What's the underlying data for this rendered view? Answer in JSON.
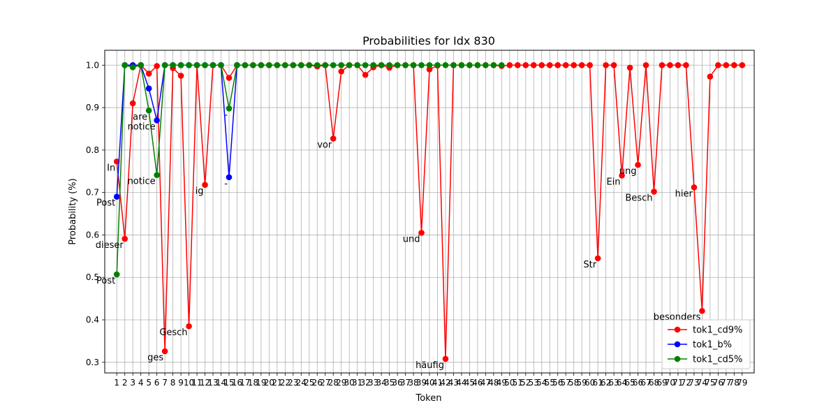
{
  "chart_data": {
    "type": "line",
    "title": "Probabilities for Idx 830",
    "xlabel": "Token",
    "ylabel": "Probability (%)",
    "xlim": [
      -0.5,
      80.5
    ],
    "ylim": [
      0.275,
      1.035
    ],
    "yticks": [
      0.3,
      0.4,
      0.5,
      0.6,
      0.7,
      0.8,
      0.9,
      1.0
    ],
    "xticks": [
      1,
      2,
      3,
      4,
      5,
      6,
      7,
      8,
      9,
      10,
      11,
      12,
      13,
      14,
      15,
      16,
      17,
      18,
      19,
      20,
      21,
      22,
      23,
      24,
      25,
      26,
      27,
      28,
      29,
      30,
      31,
      32,
      33,
      34,
      35,
      36,
      37,
      38,
      39,
      40,
      41,
      42,
      43,
      44,
      45,
      46,
      47,
      48,
      49,
      50,
      51,
      52,
      53,
      54,
      55,
      56,
      57,
      58,
      59,
      60,
      61,
      62,
      63,
      64,
      65,
      66,
      67,
      68,
      69,
      70,
      71,
      72,
      73,
      74,
      75,
      76,
      77,
      78,
      79
    ],
    "grid": true,
    "legend_position": "lower right",
    "series": [
      {
        "name": "tok1_cd9%",
        "color": "#ff0000",
        "x": [
          1,
          2,
          3,
          4,
          5,
          6,
          7,
          8,
          9,
          10,
          11,
          12,
          13,
          14,
          15,
          16,
          17,
          18,
          19,
          20,
          21,
          22,
          23,
          24,
          25,
          26,
          27,
          28,
          29,
          30,
          31,
          32,
          33,
          34,
          35,
          36,
          37,
          38,
          39,
          40,
          41,
          42,
          43,
          44,
          45,
          46,
          47,
          48,
          49,
          50,
          51,
          52,
          53,
          54,
          55,
          56,
          57,
          58,
          59,
          60,
          61,
          62,
          63,
          64,
          65,
          66,
          67,
          68,
          69,
          70,
          71,
          72,
          73,
          74,
          75,
          76,
          77,
          78,
          79
        ],
        "y": [
          0.773,
          0.591,
          0.91,
          1.0,
          0.98,
          0.998,
          0.326,
          0.993,
          0.975,
          0.385,
          1.0,
          0.718,
          1.0,
          1.0,
          0.97,
          1.0,
          1.0,
          1.0,
          1.0,
          1.0,
          1.0,
          1.0,
          1.0,
          1.0,
          1.0,
          0.997,
          1.0,
          0.827,
          0.985,
          1.0,
          1.0,
          0.977,
          0.995,
          1.0,
          0.994,
          1.0,
          1.0,
          1.0,
          0.605,
          0.99,
          0.999,
          0.308,
          1.0,
          1.0,
          1.0,
          1.0,
          1.0,
          1.0,
          0.998,
          1.0,
          1.0,
          1.0,
          1.0,
          1.0,
          1.0,
          1.0,
          1.0,
          1.0,
          1.0,
          1.0,
          0.545,
          1.0,
          1.0,
          0.74,
          0.994,
          0.765,
          1.0,
          0.702,
          1.0,
          1.0,
          1.0,
          1.0,
          0.712,
          0.421,
          0.973,
          1.0,
          1.0,
          1.0,
          1.0
        ]
      },
      {
        "name": "tok1_b%",
        "color": "#0000ff",
        "x": [
          1,
          2,
          3,
          4,
          5,
          6,
          7,
          8,
          9,
          10,
          11,
          12,
          13,
          14,
          15,
          16
        ],
        "y": [
          0.69,
          1.0,
          1.0,
          1.0,
          0.945,
          0.87,
          1.0,
          1.0,
          1.0,
          1.0,
          1.0,
          1.0,
          1.0,
          1.0,
          0.736,
          1.0
        ]
      },
      {
        "name": "tok1_cd5%",
        "color": "#008000",
        "x": [
          1,
          2,
          3,
          4,
          5,
          6,
          7,
          8,
          9,
          10,
          11,
          12,
          13,
          14,
          15,
          16,
          17,
          18,
          19,
          20,
          21,
          22,
          23,
          24,
          25,
          26,
          27,
          28,
          29,
          30,
          31,
          32,
          33,
          34,
          35,
          36,
          37,
          38,
          39,
          40,
          41,
          42,
          43,
          44,
          45,
          46,
          47,
          48,
          49
        ],
        "y": [
          0.507,
          1.0,
          0.995,
          1.0,
          0.893,
          0.741,
          1.0,
          1.0,
          1.0,
          1.0,
          1.0,
          1.0,
          1.0,
          1.0,
          0.898,
          1.0,
          1.0,
          1.0,
          1.0,
          1.0,
          1.0,
          1.0,
          1.0,
          1.0,
          1.0,
          1.0,
          1.0,
          1.0,
          1.0,
          1.0,
          1.0,
          1.0,
          1.0,
          1.0,
          1.0,
          1.0,
          1.0,
          1.0,
          1.0,
          1.0,
          1.0,
          1.0,
          1.0,
          1.0,
          1.0,
          1.0,
          1.0,
          1.0,
          1.0
        ]
      }
    ],
    "annotations": [
      {
        "text": "In",
        "x": 1,
        "y": 0.773
      },
      {
        "text": "Post",
        "x": 1,
        "y": 0.69
      },
      {
        "text": "Post",
        "x": 1,
        "y": 0.507
      },
      {
        "text": "dieser",
        "x": 2,
        "y": 0.591
      },
      {
        "text": "are",
        "x": 5,
        "y": 0.893
      },
      {
        "text": "notice",
        "x": 6,
        "y": 0.87
      },
      {
        "text": "notice",
        "x": 6,
        "y": 0.741
      },
      {
        "text": "ges",
        "x": 7,
        "y": 0.326
      },
      {
        "text": "Gesch",
        "x": 10,
        "y": 0.385
      },
      {
        "text": "ig",
        "x": 12,
        "y": 0.718
      },
      {
        "text": "-",
        "x": 15,
        "y": 0.898
      },
      {
        "text": "-",
        "x": 15,
        "y": 0.736
      },
      {
        "text": "vor",
        "x": 28,
        "y": 0.827
      },
      {
        "text": "und",
        "x": 39,
        "y": 0.605
      },
      {
        "text": "häufig",
        "x": 42,
        "y": 0.308
      },
      {
        "text": "Str",
        "x": 61,
        "y": 0.545
      },
      {
        "text": "Ein",
        "x": 64,
        "y": 0.74
      },
      {
        "text": "ung",
        "x": 66,
        "y": 0.765
      },
      {
        "text": "Besch",
        "x": 68,
        "y": 0.702
      },
      {
        "text": "hier",
        "x": 73,
        "y": 0.712
      },
      {
        "text": "besonders",
        "x": 74,
        "y": 0.421
      }
    ]
  }
}
